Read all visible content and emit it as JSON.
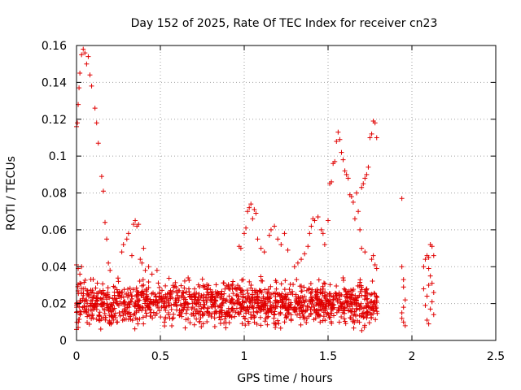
{
  "chart_data": {
    "type": "scatter",
    "title": "Day 152 of 2025, Rate Of TEC Index for receiver cn23",
    "xlabel": "GPS time / hours",
    "ylabel": "ROTI / TECUs",
    "xlim": [
      0,
      2.5
    ],
    "ylim": [
      0,
      0.16
    ],
    "x_ticks": [
      0,
      0.5,
      1,
      1.5,
      2,
      2.5
    ],
    "x_tick_labels": [
      "0",
      "0.5",
      "1",
      "1.5",
      "2",
      "2.5"
    ],
    "y_ticks": [
      0,
      0.02,
      0.04,
      0.06,
      0.08,
      0.1,
      0.12,
      0.14,
      0.16
    ],
    "y_tick_labels": [
      "0",
      "0.02",
      "0.04",
      "0.06",
      "0.08",
      "0.1",
      "0.12",
      "0.14",
      "0.16"
    ],
    "grid": true,
    "marker": "+",
    "color": "#e00000",
    "series": [
      {
        "name": "ROTI",
        "points": [
          [
            0.0,
            0.116
          ],
          [
            0.005,
            0.118
          ],
          [
            0.01,
            0.128
          ],
          [
            0.015,
            0.137
          ],
          [
            0.02,
            0.145
          ],
          [
            0.03,
            0.155
          ],
          [
            0.04,
            0.158
          ],
          [
            0.05,
            0.156
          ],
          [
            0.06,
            0.15
          ],
          [
            0.07,
            0.154
          ],
          [
            0.08,
            0.144
          ],
          [
            0.09,
            0.138
          ],
          [
            0.11,
            0.126
          ],
          [
            0.12,
            0.118
          ],
          [
            0.13,
            0.107
          ],
          [
            0.15,
            0.089
          ],
          [
            0.16,
            0.081
          ],
          [
            0.17,
            0.064
          ],
          [
            0.18,
            0.055
          ],
          [
            0.19,
            0.042
          ],
          [
            0.2,
            0.038
          ],
          [
            0.0,
            0.041
          ],
          [
            0.01,
            0.039
          ],
          [
            0.02,
            0.036
          ],
          [
            0.03,
            0.04
          ],
          [
            0.02,
            0.031
          ],
          [
            0.04,
            0.028
          ],
          [
            0.0,
            0.006
          ],
          [
            0.01,
            0.007
          ],
          [
            0.25,
            0.032
          ],
          [
            0.27,
            0.048
          ],
          [
            0.28,
            0.052
          ],
          [
            0.3,
            0.055
          ],
          [
            0.31,
            0.058
          ],
          [
            0.33,
            0.046
          ],
          [
            0.34,
            0.063
          ],
          [
            0.35,
            0.065
          ],
          [
            0.36,
            0.062
          ],
          [
            0.37,
            0.063
          ],
          [
            0.4,
            0.05
          ],
          [
            0.38,
            0.044
          ],
          [
            0.39,
            0.042
          ],
          [
            0.41,
            0.038
          ],
          [
            0.43,
            0.04
          ],
          [
            0.45,
            0.036
          ],
          [
            0.48,
            0.038
          ],
          [
            0.97,
            0.051
          ],
          [
            0.98,
            0.05
          ],
          [
            1.0,
            0.058
          ],
          [
            1.01,
            0.061
          ],
          [
            1.02,
            0.07
          ],
          [
            1.03,
            0.072
          ],
          [
            1.04,
            0.074
          ],
          [
            1.05,
            0.066
          ],
          [
            1.06,
            0.071
          ],
          [
            1.07,
            0.069
          ],
          [
            1.08,
            0.055
          ],
          [
            1.1,
            0.05
          ],
          [
            1.12,
            0.048
          ],
          [
            1.15,
            0.057
          ],
          [
            1.16,
            0.06
          ],
          [
            1.18,
            0.062
          ],
          [
            1.2,
            0.055
          ],
          [
            1.22,
            0.052
          ],
          [
            1.24,
            0.058
          ],
          [
            1.26,
            0.049
          ],
          [
            1.3,
            0.04
          ],
          [
            1.32,
            0.042
          ],
          [
            1.34,
            0.044
          ],
          [
            1.36,
            0.047
          ],
          [
            1.38,
            0.051
          ],
          [
            1.39,
            0.058
          ],
          [
            1.4,
            0.062
          ],
          [
            1.41,
            0.066
          ],
          [
            1.42,
            0.065
          ],
          [
            1.44,
            0.067
          ],
          [
            1.46,
            0.06
          ],
          [
            1.47,
            0.058
          ],
          [
            1.48,
            0.052
          ],
          [
            1.5,
            0.065
          ],
          [
            1.51,
            0.085
          ],
          [
            1.52,
            0.086
          ],
          [
            1.53,
            0.096
          ],
          [
            1.54,
            0.097
          ],
          [
            1.55,
            0.108
          ],
          [
            1.56,
            0.113
          ],
          [
            1.57,
            0.109
          ],
          [
            1.58,
            0.102
          ],
          [
            1.59,
            0.098
          ],
          [
            1.6,
            0.092
          ],
          [
            1.61,
            0.09
          ],
          [
            1.62,
            0.088
          ],
          [
            1.63,
            0.079
          ],
          [
            1.64,
            0.078
          ],
          [
            1.65,
            0.075
          ],
          [
            1.66,
            0.066
          ],
          [
            1.67,
            0.08
          ],
          [
            1.68,
            0.07
          ],
          [
            1.69,
            0.06
          ],
          [
            1.7,
            0.083
          ],
          [
            1.71,
            0.085
          ],
          [
            1.72,
            0.088
          ],
          [
            1.73,
            0.09
          ],
          [
            1.74,
            0.094
          ],
          [
            1.75,
            0.11
          ],
          [
            1.76,
            0.112
          ],
          [
            1.77,
            0.119
          ],
          [
            1.78,
            0.118
          ],
          [
            1.79,
            0.11
          ],
          [
            1.76,
            0.044
          ],
          [
            1.77,
            0.046
          ],
          [
            1.78,
            0.041
          ],
          [
            1.79,
            0.039
          ],
          [
            1.72,
            0.048
          ],
          [
            1.7,
            0.05
          ],
          [
            1.94,
            0.077
          ],
          [
            1.94,
            0.04
          ],
          [
            1.95,
            0.033
          ],
          [
            1.95,
            0.029
          ],
          [
            1.96,
            0.022
          ],
          [
            1.95,
            0.018
          ],
          [
            1.94,
            0.015
          ],
          [
            1.95,
            0.01
          ],
          [
            1.96,
            0.008
          ],
          [
            1.94,
            0.012
          ],
          [
            2.07,
            0.04
          ],
          [
            2.08,
            0.044
          ],
          [
            2.09,
            0.046
          ],
          [
            2.1,
            0.045
          ],
          [
            2.1,
            0.039
          ],
          [
            2.11,
            0.052
          ],
          [
            2.12,
            0.051
          ],
          [
            2.13,
            0.046
          ],
          [
            2.11,
            0.035
          ],
          [
            2.12,
            0.031
          ],
          [
            2.13,
            0.026
          ],
          [
            2.12,
            0.021
          ],
          [
            2.11,
            0.017
          ],
          [
            2.13,
            0.014
          ],
          [
            2.09,
            0.011
          ],
          [
            2.1,
            0.009
          ],
          [
            2.08,
            0.019
          ],
          [
            2.09,
            0.024
          ],
          [
            2.07,
            0.028
          ],
          [
            2.1,
            0.03
          ]
        ]
      }
    ],
    "dense_band": {
      "x_from": 0.0,
      "x_to": 1.8,
      "y_min": 0.004,
      "y_max": 0.036,
      "count": 1400,
      "seed": 7
    }
  }
}
